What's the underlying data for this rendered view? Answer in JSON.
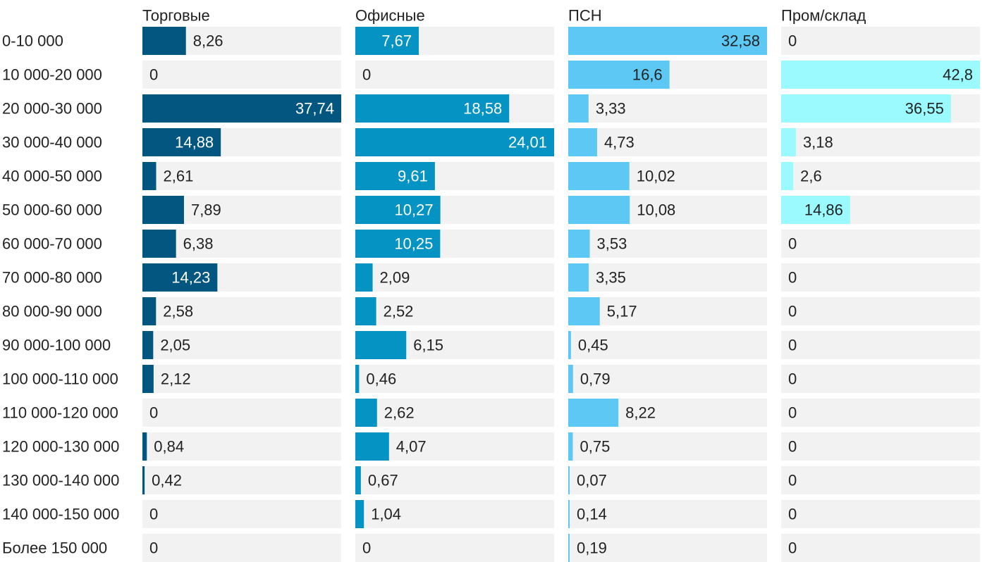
{
  "chart_data": {
    "type": "bar",
    "orientation": "horizontal",
    "layout": "small-multiples",
    "title": "",
    "categories": [
      "0-10 000",
      "10 000-20 000",
      "20 000-30 000",
      "30 000-40 000",
      "40 000-50 000",
      "50 000-60 000",
      "60 000-70 000",
      "70 000-80 000",
      "80 000-90 000",
      "90 000-100 000",
      "100 000-110 000",
      "110 000-120 000",
      "120 000-130 000",
      "130 000-140 000",
      "140 000-150 000",
      "Более 150 000"
    ],
    "series": [
      {
        "name": "Торговые",
        "color": "#03567f",
        "values": [
          8.26,
          0,
          37.74,
          14.88,
          2.61,
          7.89,
          6.38,
          14.23,
          2.58,
          2.05,
          2.12,
          0,
          0.84,
          0.42,
          0,
          0
        ],
        "labels": [
          "8,26",
          "0",
          "37,74",
          "14,88",
          "2,61",
          "7,89",
          "6,38",
          "14,23",
          "2,58",
          "2,05",
          "2,12",
          "0",
          "0,84",
          "0,42",
          "0",
          "0"
        ],
        "xlim": [
          0,
          37.74
        ]
      },
      {
        "name": "Офисные",
        "color": "#0493c2",
        "values": [
          7.67,
          0,
          18.58,
          24.01,
          9.61,
          10.27,
          10.25,
          2.09,
          2.52,
          6.15,
          0.46,
          2.62,
          4.07,
          0.67,
          1.04,
          0
        ],
        "labels": [
          "7,67",
          "0",
          "18,58",
          "24,01",
          "9,61",
          "10,27",
          "10,25",
          "2,09",
          "2,52",
          "6,15",
          "0,46",
          "2,62",
          "4,07",
          "0,67",
          "1,04",
          "0"
        ],
        "xlim": [
          0,
          24.01
        ]
      },
      {
        "name": "ПСН",
        "color": "#5ec8f5",
        "values": [
          32.58,
          16.6,
          3.33,
          4.73,
          10.02,
          10.08,
          3.53,
          3.35,
          5.17,
          0.45,
          0.79,
          8.22,
          0.75,
          0.07,
          0.14,
          0.19
        ],
        "labels": [
          "32,58",
          "16,6",
          "3,33",
          "4,73",
          "10,02",
          "10,08",
          "3,53",
          "3,35",
          "5,17",
          "0,45",
          "0,79",
          "8,22",
          "0,75",
          "0,07",
          "0,14",
          "0,19"
        ],
        "xlim": [
          0,
          32.58
        ]
      },
      {
        "name": "Пром/склад",
        "color": "#9afafd",
        "values": [
          0,
          42.8,
          36.55,
          3.18,
          2.6,
          14.86,
          0,
          0,
          0,
          0,
          0,
          0,
          0,
          0,
          0,
          0
        ],
        "labels": [
          "0",
          "42,8",
          "36,55",
          "3,18",
          "2,6",
          "14,86",
          "0",
          "0",
          "0",
          "0",
          "0",
          "0",
          "0",
          "0",
          "0",
          "0"
        ],
        "xlim": [
          0,
          42.8
        ]
      }
    ],
    "xlabel": "",
    "ylabel": "",
    "grid": false,
    "legend": "column titles on top"
  }
}
